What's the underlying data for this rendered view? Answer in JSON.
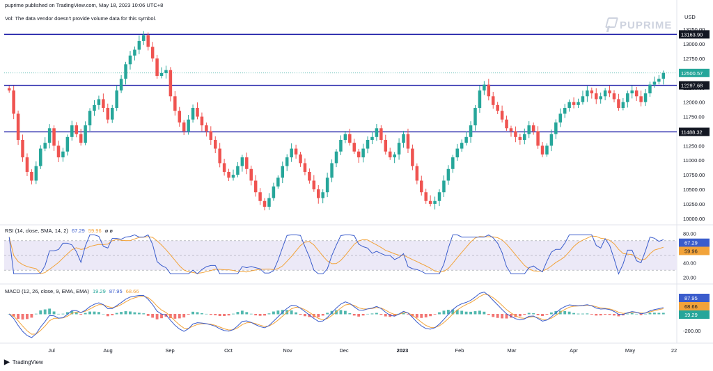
{
  "header": {
    "publisher_line": "puprime published on TradingView.com, May 18, 2023 10:06 UTC+8",
    "volume_note": "Vol: The data vendor doesn't provide volume data for this symbol.",
    "currency": "USD"
  },
  "brand": {
    "name": "PUPRIME"
  },
  "footer": {
    "logo_label": "TradingView"
  },
  "colors": {
    "up": "#26a69a",
    "down": "#ef5350",
    "level_line": "#1c1ca8",
    "rsi_line": "#3a5ccc",
    "rsi_ma": "#f2a33a",
    "rsi_band": "#ece9f7",
    "macd_line": "#3a5ccc",
    "macd_signal": "#f2a33a",
    "last_price_badge": "#26a69a"
  },
  "indicators": {
    "rsi_label": "RSI (14, close, SMA, 14, 2)",
    "rsi_value": "67.29",
    "rsi_ma_value": "59.96",
    "rsi_extra": "ø ø",
    "macd_label": "MACD (12, 26, close, 9, EMA, EMA)",
    "macd_hist": "19.29",
    "macd_line": "87.95",
    "macd_signal": "68.66"
  },
  "chart_data": {
    "type": "candlestick",
    "symbol_currency": "USD",
    "xlabels": [
      "Jul",
      "Aug",
      "Sep",
      "Oct",
      "Nov",
      "Dec",
      "2023",
      "Feb",
      "Mar",
      "Apr",
      "May",
      "22"
    ],
    "price_axis_ticks": [
      13250,
      13000,
      12750,
      12250,
      12000,
      11750,
      11250,
      11000,
      10750,
      10500,
      10250,
      10000
    ],
    "price_axis_tick_labels": [
      "13250.00",
      "13000.00",
      "12750.00",
      "12250.00",
      "12000.00",
      "11750.00",
      "11250.00",
      "11000.00",
      "10750.00",
      "10500.00",
      "10250.00",
      "10000.00"
    ],
    "ylim": [
      9950,
      13300
    ],
    "horizontal_levels": [
      {
        "value": 13163.9,
        "label": "13163.90"
      },
      {
        "value": 12287.68,
        "label": "12287.68"
      },
      {
        "value": 11488.32,
        "label": "11488.32"
      }
    ],
    "last_price": {
      "value": 12500.57,
      "label": "12500.57"
    },
    "close_path": [
      12200,
      11800,
      11350,
      11050,
      10800,
      10650,
      10900,
      11200,
      11300,
      11550,
      11250,
      11050,
      11150,
      11400,
      11600,
      11450,
      11300,
      11600,
      11850,
      11950,
      12050,
      11900,
      11700,
      11900,
      12200,
      12400,
      12650,
      12800,
      12900,
      13050,
      13150,
      12950,
      12750,
      12450,
      12500,
      12550,
      12100,
      11850,
      11650,
      11500,
      11700,
      11900,
      11750,
      11600,
      11500,
      11350,
      11200,
      10950,
      10800,
      10700,
      10750,
      10900,
      11050,
      10850,
      10650,
      10450,
      10300,
      10200,
      10350,
      10550,
      10700,
      10900,
      11050,
      11200,
      11100,
      10950,
      10800,
      10650,
      10500,
      10350,
      10450,
      10700,
      10950,
      11150,
      11350,
      11450,
      11300,
      11150,
      11050,
      11200,
      11350,
      11400,
      11550,
      11350,
      11150,
      11050,
      11100,
      11300,
      11450,
      11200,
      10900,
      10650,
      10450,
      10300,
      10250,
      10300,
      10450,
      10650,
      10850,
      11050,
      11200,
      11300,
      11400,
      11600,
      11900,
      12200,
      12300,
      12100,
      11950,
      11850,
      11700,
      11550,
      11500,
      11400,
      11350,
      11450,
      11600,
      11500,
      11250,
      11100,
      11250,
      11450,
      11650,
      11800,
      11900,
      12000,
      11950,
      12000,
      12100,
      12200,
      12150,
      12050,
      12100,
      12200,
      12150,
      12050,
      11900,
      12000,
      12150,
      12200,
      12100,
      12000,
      12150,
      12300,
      12350,
      12400,
      12500
    ],
    "rsi": {
      "label": "RSI (14, close, SMA, 14, 2)",
      "ticks": [
        80,
        60,
        40,
        20
      ],
      "tick_labels": [
        "80.00",
        "",
        "40.00",
        "20.00"
      ],
      "ylim": [
        15,
        85
      ],
      "upper_band": 70,
      "middle": 50,
      "lower_band": 30,
      "last_rsi": 67.29,
      "last_ma": 59.96
    },
    "macd": {
      "label": "MACD (12, 26, close, 9, EMA, EMA)",
      "ticks": [
        -200
      ],
      "tick_labels": [
        "-200.00"
      ],
      "last_histogram": 19.29,
      "last_macd": 87.95,
      "last_signal": 68.66
    }
  }
}
